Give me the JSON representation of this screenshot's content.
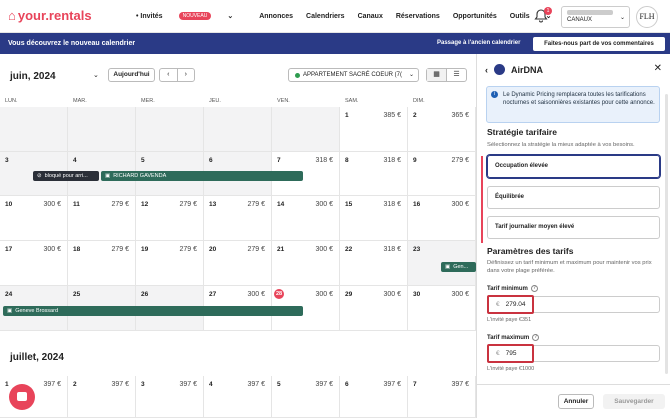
{
  "nav": {
    "logo": "your.rentals",
    "items": [
      {
        "label": "• Invités",
        "badge": "NOUVEAU"
      },
      {
        "label": "Annonces"
      },
      {
        "label": "Calendriers"
      },
      {
        "label": "Canaux"
      },
      {
        "label": "Réservations"
      },
      {
        "label": "Opportunités"
      },
      {
        "label": "Outils"
      }
    ],
    "notification_count": "1",
    "account_label": "CANAUX",
    "avatar_initials": "FLH"
  },
  "banner": {
    "text": "Vous découvrez le nouveau calendrier",
    "switch_label": "Passage à l'ancien calendrier",
    "feedback_label": "Faites-nous part de vos commentaires"
  },
  "toolbar": {
    "month_label": "juin, 2024",
    "today_label": "Aujourd'hui",
    "prev": "‹",
    "next": "›",
    "property": "APPARTEMENT SACRÉ COEUR (7(",
    "view_grid": "▦",
    "view_list": "☰"
  },
  "calendar": {
    "days": [
      "LUN.",
      "MAR.",
      "MER.",
      "JEU.",
      "VEN.",
      "SAM.",
      "DIM."
    ],
    "weeks": [
      [
        {
          "d": "",
          "p": "",
          "g": 1
        },
        {
          "d": "",
          "p": "",
          "g": 1
        },
        {
          "d": "",
          "p": "",
          "g": 1
        },
        {
          "d": "",
          "p": "",
          "g": 1
        },
        {
          "d": "",
          "p": "",
          "g": 1
        },
        {
          "d": "1",
          "p": "385 €"
        },
        {
          "d": "2",
          "p": "365 €"
        }
      ],
      [
        {
          "d": "3",
          "p": "",
          "g": 1
        },
        {
          "d": "4",
          "p": "",
          "g": 1
        },
        {
          "d": "5",
          "p": "",
          "g": 1
        },
        {
          "d": "6",
          "p": "",
          "g": 1
        },
        {
          "d": "7",
          "p": "318 €"
        },
        {
          "d": "8",
          "p": "318 €"
        },
        {
          "d": "9",
          "p": "279 €"
        }
      ],
      [
        {
          "d": "10",
          "p": "300 €"
        },
        {
          "d": "11",
          "p": "279 €"
        },
        {
          "d": "12",
          "p": "279 €"
        },
        {
          "d": "13",
          "p": "279 €"
        },
        {
          "d": "14",
          "p": "300 €"
        },
        {
          "d": "15",
          "p": "318 €"
        },
        {
          "d": "16",
          "p": "300 €"
        }
      ],
      [
        {
          "d": "17",
          "p": "300 €"
        },
        {
          "d": "18",
          "p": "279 €"
        },
        {
          "d": "19",
          "p": "279 €"
        },
        {
          "d": "20",
          "p": "279 €"
        },
        {
          "d": "21",
          "p": "300 €"
        },
        {
          "d": "22",
          "p": "318 €"
        },
        {
          "d": "23",
          "p": "",
          "g": 1
        }
      ],
      [
        {
          "d": "24",
          "p": "",
          "g": 1
        },
        {
          "d": "25",
          "p": "",
          "g": 1
        },
        {
          "d": "26",
          "p": "",
          "g": 1
        },
        {
          "d": "27",
          "p": "300 €"
        },
        {
          "d": "28",
          "p": "300 €",
          "red": 1
        },
        {
          "d": "29",
          "p": "300 €"
        },
        {
          "d": "30",
          "p": "300 €"
        }
      ]
    ],
    "events": [
      {
        "label": "bloqué pour arri...",
        "style": "dark",
        "icon": "⊘"
      },
      {
        "label": "RICHARD GAVENDA",
        "style": "green",
        "icon": "▣"
      },
      {
        "label": "Gen...",
        "style": "green",
        "icon": "▣"
      },
      {
        "label": "Geneve Brossard",
        "style": "green",
        "icon": "▣"
      }
    ],
    "july_label": "juillet, 2024",
    "july_row": [
      {
        "d": "1",
        "p": "397 €"
      },
      {
        "d": "2",
        "p": "397 €"
      },
      {
        "d": "3",
        "p": "397 €"
      },
      {
        "d": "4",
        "p": "397 €"
      },
      {
        "d": "5",
        "p": "397 €"
      },
      {
        "d": "6",
        "p": "397 €"
      },
      {
        "d": "7",
        "p": "397 €"
      }
    ]
  },
  "panel": {
    "back": "‹",
    "title": "AirDNA",
    "close": "✕",
    "info": "Le Dynamic Pricing remplacera toutes les tarifications nocturnes et saisonnières existantes pour cette annonce.",
    "strategy_title": "Stratégie tarifaire",
    "strategy_sub": "Sélectionnez la stratégie la mieux adaptée à vos besoins.",
    "options": [
      "Occupation élevée",
      "Équilibrée",
      "Tarif journalier moyen élevé"
    ],
    "params_title": "Paramètres des tarifs",
    "params_sub": "Définissez un tarif minimum et maximum pour maintenir vos prix dans votre plage préférée.",
    "min_label": "Tarif minimum",
    "currency": "€",
    "min_value": "279.04",
    "min_hint": "L'invité paye €351",
    "max_label": "Tarif maximum",
    "max_value": "795",
    "max_hint": "L'invité paye €1000",
    "cancel_label": "Annuler",
    "save_label": "Sauvegarder"
  }
}
